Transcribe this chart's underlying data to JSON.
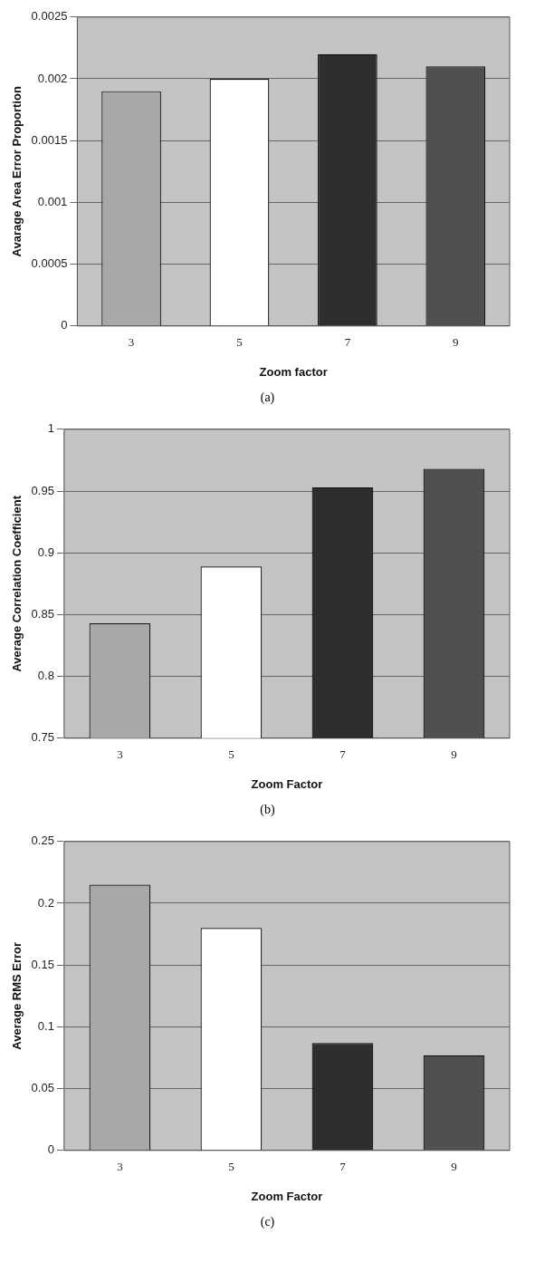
{
  "chart_data": [
    {
      "type": "bar",
      "xlabel": "Zoom factor",
      "ylabel": "Avarage Area Error Proportion",
      "categories": [
        "3",
        "5",
        "7",
        "9"
      ],
      "values": [
        0.0019,
        0.002,
        0.0022,
        0.0021
      ],
      "colors": [
        "#a8a8a8",
        "#ffffff",
        "#2e2e2e",
        "#505050"
      ],
      "ylim": [
        0,
        0.0025
      ],
      "yticks": [
        0,
        0.0005,
        0.001,
        0.0015,
        0.002,
        0.0025
      ],
      "grid": "y",
      "annotations": [
        "(a)"
      ]
    },
    {
      "type": "bar",
      "xlabel": "Zoom Factor",
      "ylabel": "Average Correlation Coefficient",
      "categories": [
        "3",
        "5",
        "7",
        "9"
      ],
      "values": [
        0.843,
        0.889,
        0.953,
        0.968
      ],
      "colors": [
        "#a8a8a8",
        "#ffffff",
        "#2e2e2e",
        "#505050"
      ],
      "ylim": [
        0.75,
        1
      ],
      "yticks": [
        0.75,
        0.8,
        0.85,
        0.9,
        0.95,
        1
      ],
      "grid": "y",
      "annotations": [
        "(b)"
      ]
    },
    {
      "type": "bar",
      "xlabel": "Zoom Factor",
      "ylabel": "Average RMS Error",
      "categories": [
        "3",
        "5",
        "7",
        "9"
      ],
      "values": [
        0.215,
        0.18,
        0.087,
        0.077
      ],
      "colors": [
        "#a8a8a8",
        "#ffffff",
        "#2e2e2e",
        "#505050"
      ],
      "ylim": [
        0,
        0.25
      ],
      "yticks": [
        0,
        0.05,
        0.1,
        0.15,
        0.2,
        0.25
      ],
      "grid": "y",
      "annotations": [
        "(c)"
      ]
    }
  ]
}
